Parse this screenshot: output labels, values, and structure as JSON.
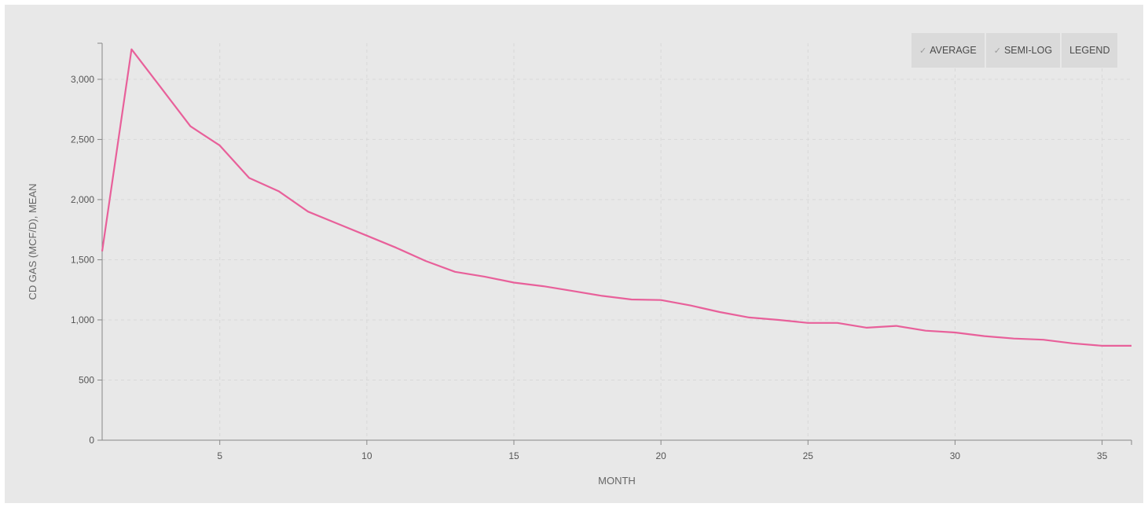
{
  "toolbar": {
    "average_label": "AVERAGE",
    "semilog_label": "SEMI-LOG",
    "legend_label": "LEGEND",
    "check_glyph": "✓"
  },
  "colors": {
    "series": "#e8609a",
    "panel": "#e8e8e8",
    "axis": "#888888",
    "grid": "#d8d8d8"
  },
  "chart_data": {
    "type": "line",
    "xlabel": "MONTH",
    "ylabel": "CD GAS (MCF/D), MEAN",
    "xlim": [
      1,
      36
    ],
    "ylim": [
      0,
      3300
    ],
    "x_ticks": [
      5,
      10,
      15,
      20,
      25,
      30,
      35
    ],
    "y_ticks": [
      0,
      500,
      1000,
      1500,
      2000,
      2500,
      3000
    ],
    "x_tick_labels": [
      "5",
      "10",
      "15",
      "20",
      "25",
      "30",
      "35"
    ],
    "y_tick_labels": [
      "0",
      "500",
      "1,000",
      "1,500",
      "2,000",
      "2,500",
      "3,000"
    ],
    "grid": true,
    "series": [
      {
        "x": [
          1,
          2,
          3,
          4,
          5,
          6,
          7,
          8,
          9,
          10,
          11,
          12,
          13,
          14,
          15,
          16,
          17,
          18,
          19,
          20,
          21,
          22,
          23,
          24,
          25,
          26,
          27,
          28,
          29,
          30,
          31,
          32,
          33,
          34,
          35,
          36
        ],
        "values": [
          1570,
          3250,
          2930,
          2610,
          2450,
          2180,
          2070,
          1900,
          1800,
          1700,
          1600,
          1490,
          1400,
          1360,
          1310,
          1280,
          1240,
          1200,
          1170,
          1165,
          1120,
          1065,
          1020,
          1000,
          975,
          975,
          935,
          950,
          910,
          895,
          865,
          845,
          835,
          805,
          785,
          785
        ]
      }
    ]
  }
}
